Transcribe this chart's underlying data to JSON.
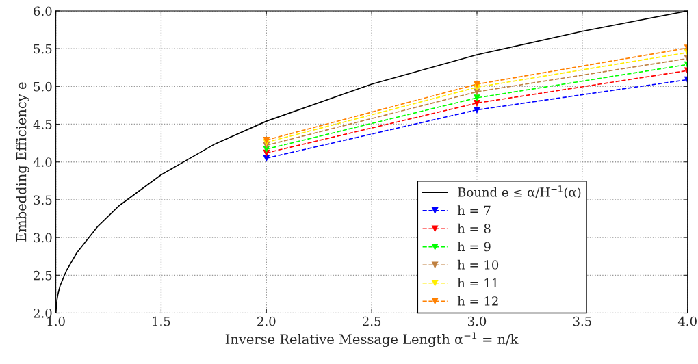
{
  "chart_data": {
    "type": "line",
    "xlabel": "Inverse Relative Message Length α$^{−1}$ = n/k",
    "ylabel": "Embedding Efficiency e",
    "xlim": [
      1.0,
      4.0
    ],
    "ylim": [
      2.0,
      6.0
    ],
    "xticks": [
      {
        "value": 1.0,
        "label": "1.0"
      },
      1.5,
      {
        "value": 2.0,
        "label": "2.0"
      },
      2.5,
      {
        "value": 3.0,
        "label": "3.0"
      },
      3.5,
      {
        "value": 4.0,
        "label": "4.0"
      }
    ],
    "yticks": [
      {
        "value": 2.0,
        "label": "2.0"
      },
      2.5,
      {
        "value": 3.0,
        "label": "3.0"
      },
      3.5,
      {
        "value": 4.0,
        "label": "4.0"
      },
      4.5,
      {
        "value": 5.0,
        "label": "5.0"
      },
      5.5,
      {
        "value": 6.0,
        "label": "6.0"
      }
    ],
    "grid": true,
    "legend": "bottom right",
    "series": [
      {
        "name": "Bound e ≤ α/H$^{−1}$(α)",
        "color": "#000000",
        "line_style": "solid",
        "marker": "none",
        "x": [
          1.0,
          1.005,
          1.01,
          1.02,
          1.05,
          1.1,
          1.2,
          1.3,
          1.5,
          1.75,
          2.0,
          2.5,
          3.0,
          3.5,
          4.0
        ],
        "values": [
          2.0,
          2.17,
          2.25,
          2.36,
          2.56,
          2.8,
          3.15,
          3.42,
          3.83,
          4.23,
          4.54,
          5.03,
          5.42,
          5.73,
          6.0
        ]
      },
      {
        "name": "h = 7",
        "color": "#0000ff",
        "line_style": "dashed",
        "marker": "triangle",
        "x": [
          2,
          3,
          4
        ],
        "values": [
          4.05,
          4.69,
          5.09
        ]
      },
      {
        "name": "h = 8",
        "color": "#ff0000",
        "line_style": "dashed",
        "marker": "triangle",
        "x": [
          2,
          3,
          4
        ],
        "values": [
          4.12,
          4.78,
          5.21
        ]
      },
      {
        "name": "h = 9",
        "color": "#00ff00",
        "line_style": "dashed",
        "marker": "triangle",
        "x": [
          2,
          3,
          4
        ],
        "values": [
          4.17,
          4.85,
          5.29
        ]
      },
      {
        "name": "h = 10",
        "color": "#bf8040",
        "line_style": "dashed",
        "marker": "triangle",
        "x": [
          2,
          3,
          4
        ],
        "values": [
          4.22,
          4.93,
          5.37
        ]
      },
      {
        "name": "h = 11",
        "color": "#ffee00",
        "line_style": "dashed",
        "marker": "triangle",
        "x": [
          2,
          3,
          4
        ],
        "values": [
          4.26,
          4.99,
          5.45
        ]
      },
      {
        "name": "h = 12",
        "color": "#ff8000",
        "line_style": "dashed",
        "marker": "triangle",
        "x": [
          2,
          3,
          4
        ],
        "values": [
          4.29,
          5.03,
          5.51
        ]
      }
    ]
  }
}
